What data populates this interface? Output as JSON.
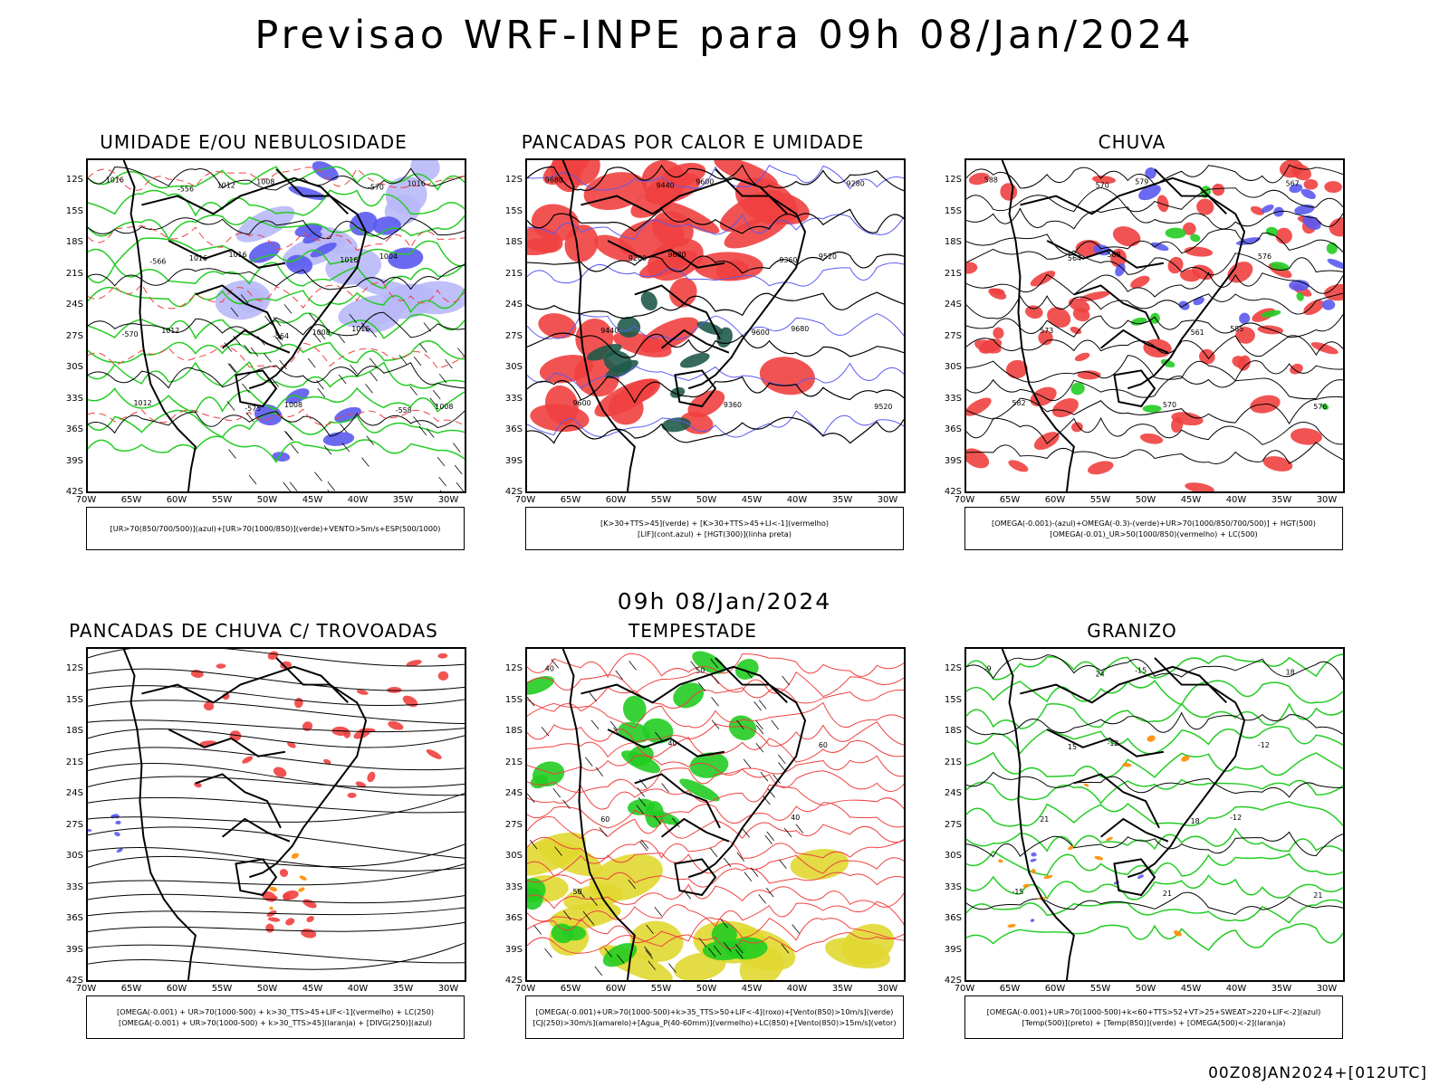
{
  "main_title": "Previsao WRF-INPE  para 09h 08/Jan/2024",
  "mid_title": "09h 08/Jan/2024",
  "footer": "00Z08JAN2024+[012UTC]",
  "lat_labels": [
    "12S",
    "15S",
    "18S",
    "21S",
    "24S",
    "27S",
    "30S",
    "33S",
    "36S",
    "39S",
    "42S"
  ],
  "lon_labels": [
    "70W",
    "65W",
    "60W",
    "55W",
    "50W",
    "45W",
    "40W",
    "35W",
    "30W"
  ],
  "colors": {
    "blue": "#5a5af0",
    "green": "#22cc22",
    "red": "#f04040",
    "yellow": "#e0d830",
    "darkgreen": "#1f5a4a",
    "orange": "#ff8c00"
  },
  "panels": [
    {
      "title": "UMIDADE E/OU NEBULOSIDADE",
      "legend": [
        "[UR>70(850/700/500)](azul)+[UR>70(1000/850)](verde)+VENTO>5m/s+ESP(500/1000)"
      ],
      "contour_labels": [
        "1016",
        "1016",
        "1016",
        "1012",
        "1008",
        "1004",
        "1012",
        "1008",
        "1016",
        "1016",
        "1008",
        "1008",
        "1012",
        "1016",
        "-570",
        "-575",
        "-570",
        "-566",
        "-564",
        "-558",
        "-556"
      ]
    },
    {
      "title": "PANCADAS POR CALOR E UMIDADE",
      "legend": [
        "[K>30+TTS>45](verde) + [K>30+TTS>45+LI<-1](vermelho)",
        "[LIF](cont.azul) + [HGT(300)](linha preta)"
      ],
      "contour_labels": [
        "9680",
        "9680",
        "9680",
        "9600",
        "9600",
        "9520",
        "9440",
        "9360",
        "9280",
        "9200",
        "9600",
        "9520",
        "9440",
        "9360"
      ]
    },
    {
      "title": "CHUVA",
      "legend": [
        "[OMEGA(-0.001)-(azul)+OMEGA(-0.3)-(verde)+UR>70(1000/850/700/500)] + HGT(500)",
        "[OMEGA(-0.01)_UR>50(1000/850)(vermelho) + LC(500)"
      ],
      "contour_labels": [
        "588",
        "588",
        "585",
        "582",
        "579",
        "576",
        "573",
        "570",
        "567",
        "564",
        "561",
        "576",
        "570"
      ]
    },
    {
      "title": "PANCADAS DE CHUVA C/ TROVOADAS",
      "legend": [
        "[OMEGA(-0.001) + UR>70(1000-500) + k>30_TTS>45+LIF<-1](vermelho) + LC(250)",
        "[OMEGA(-0.001) + UR>70(1000-500) + k>30_TTS>45](laranja) + [DIVG(250)](azul)"
      ],
      "contour_labels": []
    },
    {
      "title": "TEMPESTADE",
      "legend": [
        "[OMEGA(-0.001)+UR>70(1000-500)+k>35_TTS>50+LIF<-4](roxo)+[Vento(850)>10m/s](verde)",
        "[CJ(250)>30m/s](amarelo)+[Agua_P(40-60mm)](vermelho)+LC(850)+[Vento(850)>15m/s](vetor)"
      ],
      "contour_labels": [
        "40",
        "40",
        "40",
        "50",
        "50",
        "60",
        "60"
      ]
    },
    {
      "title": "GRANIZO",
      "legend": [
        "[OMEGA(-0.001)+UR>70(1000-500)+k<60+TTS>52+VT>25+SWEAT>220+LIF<-2](azul)",
        "[Temp(500)](preto) + [Temp(850)](verde) + [OMEGA(500)<-2](laranja)"
      ],
      "contour_labels": [
        "-9",
        "-12",
        "-12",
        "-15",
        "-15",
        "-12",
        "21",
        "21",
        "18",
        "15",
        "18",
        "21",
        "24"
      ]
    }
  ]
}
